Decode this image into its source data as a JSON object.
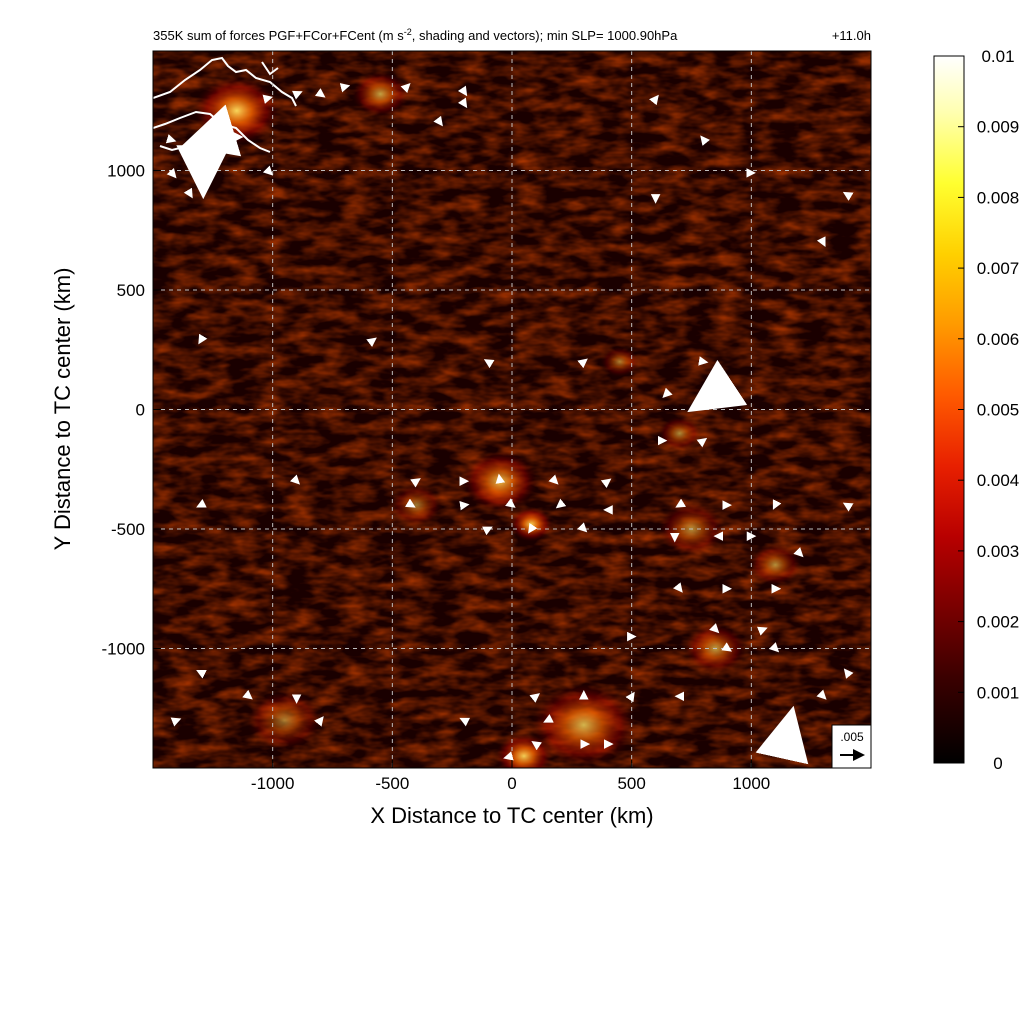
{
  "title": {
    "main": "355K sum of forces PGF+FCor+FCent (m s",
    "sup": "-2",
    "rest": ", shading and vectors); min SLP= 1000.90hPa",
    "time": "+11.0h"
  },
  "colors": {
    "background": "#1a0000",
    "grid": "#bfbfbf",
    "vector": "#ffffff",
    "coast": "#ffffff",
    "colormap": [
      "#000000",
      "#3a0000",
      "#7a0000",
      "#b80000",
      "#e82000",
      "#ff5a00",
      "#ff9a00",
      "#ffd000",
      "#ffff30",
      "#ffffb0",
      "#ffffff"
    ]
  },
  "chart_data": {
    "type": "heatmap",
    "xlabel": "X Distance to TC center (km)",
    "ylabel": "Y Distance to TC center (km)",
    "xlim": [
      -1500,
      1500
    ],
    "ylim": [
      -1500,
      1500
    ],
    "xticks": [
      -1000,
      -500,
      0,
      500,
      1000
    ],
    "yticks": [
      1000,
      500,
      0,
      -500,
      -1000
    ],
    "xtick_labels": [
      "-1000",
      "-500",
      "0",
      "500",
      "1000"
    ],
    "ytick_labels": [
      "1000",
      "500",
      "0",
      "-500",
      "-1000"
    ],
    "grid": true,
    "colorbar": {
      "min": 0,
      "max": 0.01,
      "ticks": [
        0.01,
        0.009,
        0.008,
        0.007,
        0.006,
        0.005,
        0.004,
        0.003,
        0.002,
        0.001,
        0
      ],
      "tick_labels": [
        "0.01",
        "0.009",
        "0.008",
        "0.007",
        "0.006",
        "0.005",
        "0.004",
        "0.003",
        "0.002",
        "0.001",
        "0"
      ]
    },
    "reference_vector": {
      "label": ".005",
      "magnitude": 0.005
    },
    "hotspots": [
      {
        "x": -1150,
        "y": 1250,
        "intensity": 0.009,
        "r": 180
      },
      {
        "x": -550,
        "y": 1320,
        "intensity": 0.006,
        "r": 120
      },
      {
        "x": -50,
        "y": -300,
        "intensity": 0.007,
        "r": 160
      },
      {
        "x": 80,
        "y": -480,
        "intensity": 0.008,
        "r": 90
      },
      {
        "x": 750,
        "y": -500,
        "intensity": 0.005,
        "r": 140
      },
      {
        "x": 850,
        "y": -1000,
        "intensity": 0.006,
        "r": 130
      },
      {
        "x": 1100,
        "y": -650,
        "intensity": 0.005,
        "r": 110
      },
      {
        "x": 300,
        "y": -1320,
        "intensity": 0.007,
        "r": 220
      },
      {
        "x": 50,
        "y": -1450,
        "intensity": 0.008,
        "r": 120
      },
      {
        "x": 700,
        "y": -100,
        "intensity": 0.005,
        "r": 90
      },
      {
        "x": 450,
        "y": 200,
        "intensity": 0.004,
        "r": 80
      },
      {
        "x": -950,
        "y": -1300,
        "intensity": 0.004,
        "r": 160
      },
      {
        "x": -400,
        "y": -400,
        "intensity": 0.004,
        "r": 110
      }
    ],
    "vectors": [
      {
        "x": -1430,
        "y": 1130,
        "u": 0.001,
        "v": -0.0003
      },
      {
        "x": -1290,
        "y": 1130,
        "u": -0.002,
        "v": -0.0006
      },
      {
        "x": -1290,
        "y": 1000,
        "u": 0.0,
        "v": -0.0035
      },
      {
        "x": -1430,
        "y": 1000,
        "u": 0.0012,
        "v": -0.0014
      },
      {
        "x": -1350,
        "y": 910,
        "u": 0.0006,
        "v": -0.001
      },
      {
        "x": -1150,
        "y": 1140,
        "u": 0.001,
        "v": 0.0
      },
      {
        "x": -1020,
        "y": 1000,
        "u": 0.0008,
        "v": -0.0008
      },
      {
        "x": -1030,
        "y": 1300,
        "u": 0.0012,
        "v": 0.0003
      },
      {
        "x": -900,
        "y": 1320,
        "u": 0.0009,
        "v": 0.0004
      },
      {
        "x": -800,
        "y": 1320,
        "u": 0.0007,
        "v": -0.0005
      },
      {
        "x": -700,
        "y": 1350,
        "u": 0.0008,
        "v": 0.0002
      },
      {
        "x": -440,
        "y": 1350,
        "u": 0.0005,
        "v": 0.0005
      },
      {
        "x": -200,
        "y": 1330,
        "u": 0.0004,
        "v": -0.0006
      },
      {
        "x": -200,
        "y": 1280,
        "u": 0.0004,
        "v": -0.0006
      },
      {
        "x": -300,
        "y": 1200,
        "u": 0.0003,
        "v": -0.0004
      },
      {
        "x": 600,
        "y": 1300,
        "u": 0.0004,
        "v": 0.0005
      },
      {
        "x": 800,
        "y": 1130,
        "u": -0.0004,
        "v": 0.0005
      },
      {
        "x": 1000,
        "y": 990,
        "u": 0.0005,
        "v": 0.0
      },
      {
        "x": 600,
        "y": 880,
        "u": 0.0,
        "v": -0.0005
      },
      {
        "x": 1400,
        "y": 900,
        "u": -0.0005,
        "v": 0.0003
      },
      {
        "x": 1300,
        "y": 700,
        "u": 0.0003,
        "v": -0.0006
      },
      {
        "x": -1300,
        "y": 290,
        "u": -0.0003,
        "v": -0.0005
      },
      {
        "x": -580,
        "y": 290,
        "u": 0.0004,
        "v": 0.0003
      },
      {
        "x": -100,
        "y": 200,
        "u": -0.0005,
        "v": 0.0003
      },
      {
        "x": 300,
        "y": 200,
        "u": 0.0005,
        "v": 0.0004
      },
      {
        "x": 800,
        "y": 200,
        "u": 0.0006,
        "v": -0.0001
      },
      {
        "x": 650,
        "y": 70,
        "u": -0.0008,
        "v": -0.0008
      },
      {
        "x": 870,
        "y": 80,
        "u": -0.005,
        "v": -0.0033
      },
      {
        "x": 630,
        "y": -130,
        "u": 0.0005,
        "v": 0.0
      },
      {
        "x": 800,
        "y": -130,
        "u": 0.0004,
        "v": 0.0003
      },
      {
        "x": -400,
        "y": -300,
        "u": 0.0006,
        "v": 0.0004
      },
      {
        "x": -200,
        "y": -300,
        "u": 0.0006,
        "v": 0.0
      },
      {
        "x": -50,
        "y": -300,
        "u": -0.0002,
        "v": 0.0012
      },
      {
        "x": 180,
        "y": -300,
        "u": 0.0004,
        "v": -0.0004
      },
      {
        "x": 400,
        "y": -300,
        "u": 0.0004,
        "v": 0.0003
      },
      {
        "x": -420,
        "y": -400,
        "u": 0.0005,
        "v": -0.0003
      },
      {
        "x": -200,
        "y": -400,
        "u": 0.0007,
        "v": 0.0001
      },
      {
        "x": 0,
        "y": -400,
        "u": 0.0004,
        "v": -0.0003
      },
      {
        "x": 200,
        "y": -400,
        "u": -0.0005,
        "v": -0.0004
      },
      {
        "x": 400,
        "y": -420,
        "u": -0.0005,
        "v": 0.0
      },
      {
        "x": -100,
        "y": -500,
        "u": 0.0006,
        "v": 0.0003
      },
      {
        "x": 80,
        "y": -500,
        "u": -0.0004,
        "v": -0.0006
      },
      {
        "x": 300,
        "y": -500,
        "u": 0.0004,
        "v": -0.0004
      },
      {
        "x": 700,
        "y": -400,
        "u": -0.0005,
        "v": -0.0003
      },
      {
        "x": 900,
        "y": -400,
        "u": 0.0005,
        "v": 0.0
      },
      {
        "x": 1100,
        "y": -400,
        "u": -0.0003,
        "v": -0.0006
      },
      {
        "x": 680,
        "y": -530,
        "u": 0.0,
        "v": -0.0009
      },
      {
        "x": 870,
        "y": -530,
        "u": -0.001,
        "v": 0.0
      },
      {
        "x": 1000,
        "y": -530,
        "u": 0.0006,
        "v": 0.0
      },
      {
        "x": 1400,
        "y": -400,
        "u": -0.0005,
        "v": 0.0003
      },
      {
        "x": -1300,
        "y": -400,
        "u": -0.0006,
        "v": -0.0003
      },
      {
        "x": -900,
        "y": -300,
        "u": 0.0004,
        "v": -0.0004
      },
      {
        "x": 700,
        "y": -750,
        "u": 0.0004,
        "v": -0.0005
      },
      {
        "x": 900,
        "y": -750,
        "u": 0.0005,
        "v": 0.0
      },
      {
        "x": 1100,
        "y": -750,
        "u": 0.0008,
        "v": 0.0
      },
      {
        "x": 1200,
        "y": -600,
        "u": 0.0006,
        "v": -0.0006
      },
      {
        "x": 850,
        "y": -920,
        "u": 0.0005,
        "v": -0.0005
      },
      {
        "x": 1050,
        "y": -920,
        "u": 0.0005,
        "v": 0.0002
      },
      {
        "x": 900,
        "y": -1000,
        "u": 0.0006,
        "v": -0.0004
      },
      {
        "x": 1100,
        "y": -1000,
        "u": 0.0005,
        "v": -0.0005
      },
      {
        "x": 500,
        "y": -950,
        "u": 0.0006,
        "v": 0.0
      },
      {
        "x": -1300,
        "y": -1100,
        "u": -0.0006,
        "v": 0.0003
      },
      {
        "x": -1100,
        "y": -1200,
        "u": 0.0005,
        "v": -0.0004
      },
      {
        "x": -900,
        "y": -1200,
        "u": 0.0,
        "v": -0.0012
      },
      {
        "x": -800,
        "y": -1300,
        "u": 0.0004,
        "v": 0.0005
      },
      {
        "x": -1400,
        "y": -1300,
        "u": 0.0005,
        "v": 0.0002
      },
      {
        "x": -200,
        "y": -1300,
        "u": -0.0006,
        "v": 0.0003
      },
      {
        "x": 100,
        "y": -1200,
        "u": 0.0005,
        "v": 0.0004
      },
      {
        "x": 300,
        "y": -1200,
        "u": 0.0,
        "v": 0.0009
      },
      {
        "x": 500,
        "y": -1200,
        "u": 0.0004,
        "v": 0.0006
      },
      {
        "x": 700,
        "y": -1200,
        "u": -0.0006,
        "v": 0.0
      },
      {
        "x": 150,
        "y": -1300,
        "u": -0.0006,
        "v": -0.0003
      },
      {
        "x": 300,
        "y": -1400,
        "u": 0.0009,
        "v": 0.0
      },
      {
        "x": 400,
        "y": -1400,
        "u": 0.0008,
        "v": 0.0
      },
      {
        "x": 100,
        "y": -1400,
        "u": -0.0006,
        "v": 0.0004
      },
      {
        "x": 0,
        "y": -1450,
        "u": -0.0015,
        "v": -0.0004
      },
      {
        "x": 1150,
        "y": -1360,
        "u": 0.0008,
        "v": 0.0036
      },
      {
        "x": 1300,
        "y": -1200,
        "u": 0.0004,
        "v": -0.0004
      },
      {
        "x": 1400,
        "y": -1100,
        "u": -0.0004,
        "v": 0.0005
      }
    ]
  }
}
